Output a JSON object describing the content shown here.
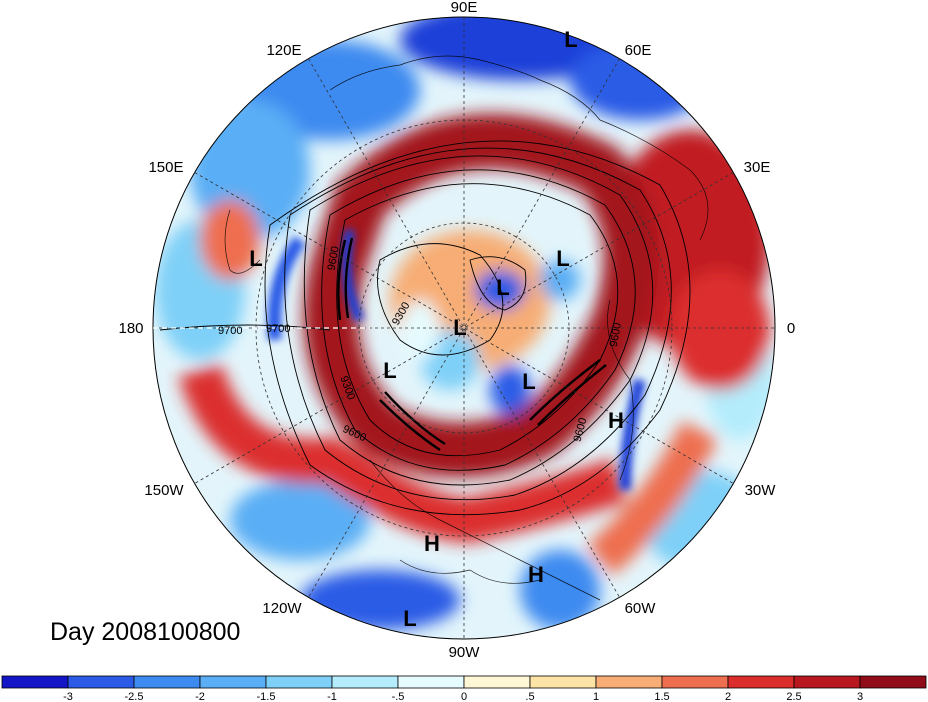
{
  "title": "Day 2008100800",
  "longitude_labels": [
    {
      "text": "90E",
      "key": "n"
    },
    {
      "text": "60E",
      "key": "nne"
    },
    {
      "text": "120E",
      "key": "nnw"
    },
    {
      "text": "30E",
      "key": "ene"
    },
    {
      "text": "150E",
      "key": "wnw"
    },
    {
      "text": "0",
      "key": "e"
    },
    {
      "text": "180",
      "key": "w"
    },
    {
      "text": "30W",
      "key": "ese"
    },
    {
      "text": "150W",
      "key": "wsw"
    },
    {
      "text": "60W",
      "key": "sse"
    },
    {
      "text": "120W",
      "key": "ssw"
    },
    {
      "text": "90W",
      "key": "s"
    }
  ],
  "pressure_centers": [
    {
      "text": "L",
      "key": "top"
    },
    {
      "text": "L",
      "key": "pacific-w"
    },
    {
      "text": "L",
      "key": "eurasia"
    },
    {
      "text": "L",
      "key": "pole"
    },
    {
      "text": "L",
      "key": "siberia"
    },
    {
      "text": "L",
      "key": "canada"
    },
    {
      "text": "L",
      "key": "greenland"
    },
    {
      "text": "H",
      "key": "atlantic"
    },
    {
      "text": "H",
      "key": "mexico"
    },
    {
      "text": "H",
      "key": "caribbean"
    },
    {
      "text": "L",
      "key": "south"
    }
  ],
  "contour_labels": [
    "9700",
    "9700",
    "9600",
    "9300",
    "9600",
    "9600",
    "9600",
    "9300"
  ],
  "colorbar": {
    "ticks": [
      "-3",
      "-2.5",
      "-2",
      "-1.5",
      "-1",
      "-.5",
      "0",
      ".5",
      "1",
      "1.5",
      "2",
      "2.5",
      "3"
    ],
    "colors": [
      "#1515c8",
      "#2b5be6",
      "#3d8af0",
      "#5aaef5",
      "#7fd0f8",
      "#b4ecfc",
      "#e6fbfe",
      "#fdf7d6",
      "#fce3a6",
      "#f7ad75",
      "#ee6e50",
      "#dc2d2d",
      "#b81720",
      "#8f0c18"
    ]
  }
}
